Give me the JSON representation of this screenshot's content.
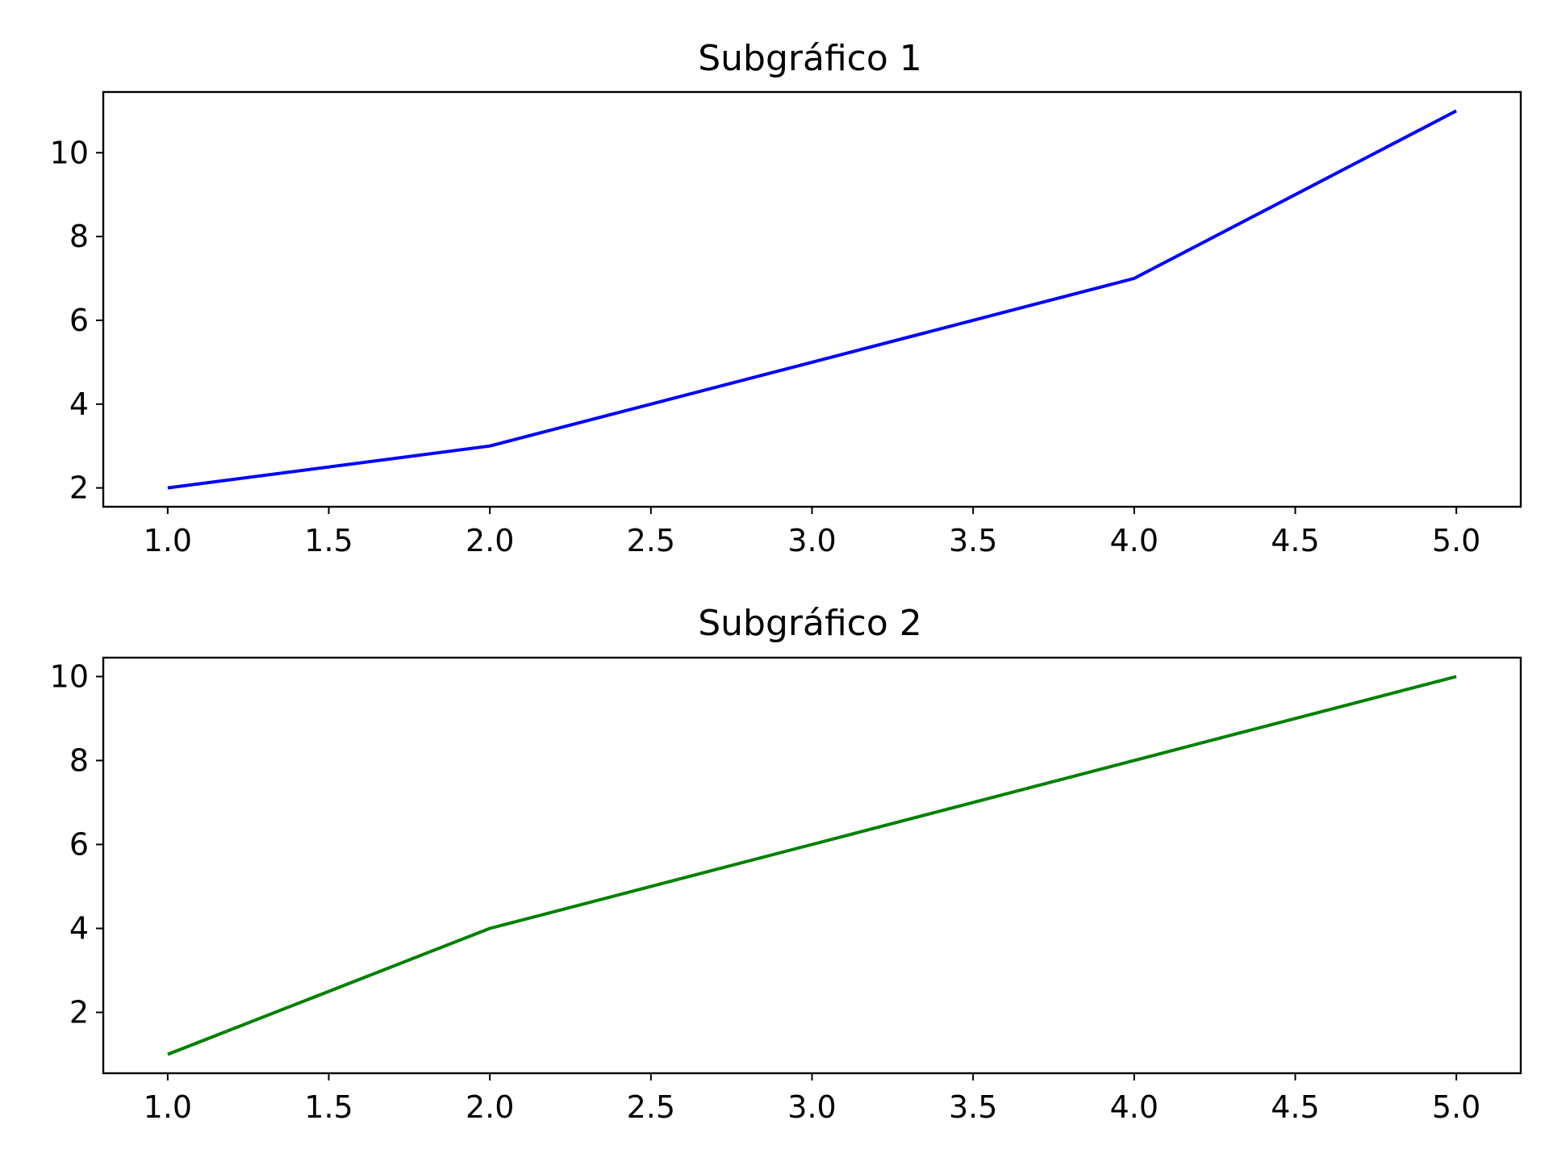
{
  "chart_data": [
    {
      "type": "line",
      "title": "Subgráfico 1",
      "xlabel": "",
      "ylabel": "",
      "x": [
        1,
        2,
        3,
        4,
        5
      ],
      "series": [
        {
          "values": [
            2,
            3,
            5,
            7,
            11
          ],
          "color": "#0000ff"
        }
      ],
      "xlim": [
        0.8,
        5.2
      ],
      "ylim": [
        1.55,
        11.45
      ],
      "xticks": [
        1.0,
        1.5,
        2.0,
        2.5,
        3.0,
        3.5,
        4.0,
        4.5,
        5.0
      ],
      "xtick_labels": [
        "1.0",
        "1.5",
        "2.0",
        "2.5",
        "3.0",
        "3.5",
        "4.0",
        "4.5",
        "5.0"
      ],
      "yticks": [
        2,
        4,
        6,
        8,
        10
      ],
      "ytick_labels": [
        "2",
        "4",
        "6",
        "8",
        "10"
      ],
      "grid": false,
      "legend": "none"
    },
    {
      "type": "line",
      "title": "Subgráfico 2",
      "xlabel": "",
      "ylabel": "",
      "x": [
        1,
        2,
        3,
        4,
        5
      ],
      "series": [
        {
          "values": [
            1,
            4,
            6,
            8,
            10
          ],
          "color": "#008000"
        }
      ],
      "xlim": [
        0.8,
        5.2
      ],
      "ylim": [
        0.55,
        10.45
      ],
      "xticks": [
        1.0,
        1.5,
        2.0,
        2.5,
        3.0,
        3.5,
        4.0,
        4.5,
        5.0
      ],
      "xtick_labels": [
        "1.0",
        "1.5",
        "2.0",
        "2.5",
        "3.0",
        "3.5",
        "4.0",
        "4.5",
        "5.0"
      ],
      "yticks": [
        2,
        4,
        6,
        8,
        10
      ],
      "ytick_labels": [
        "2",
        "4",
        "6",
        "8",
        "10"
      ],
      "grid": false,
      "legend": "none"
    }
  ]
}
